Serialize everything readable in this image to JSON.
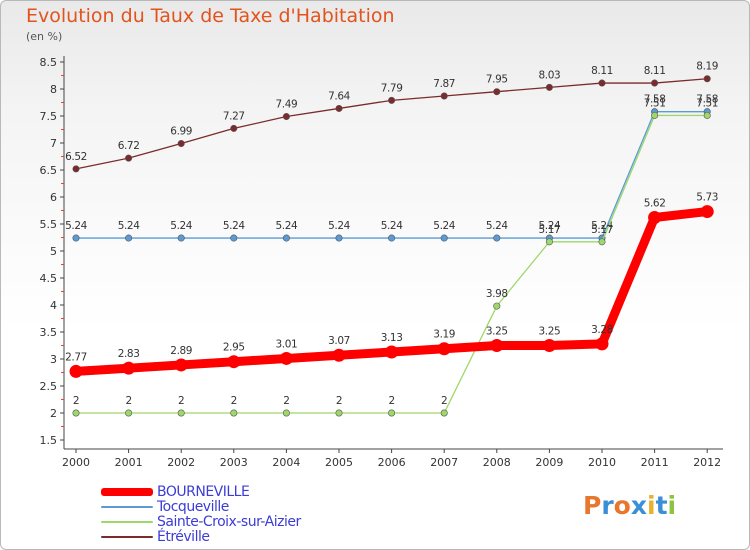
{
  "title": "Evolution du Taux de Taxe d'Habitation",
  "subtitle": "(en %)",
  "logo": {
    "letters": [
      "P",
      "r",
      "o",
      "x",
      "i",
      "t",
      "i"
    ],
    "colors": [
      "#e8762c",
      "#3a8fd6",
      "#e8762c",
      "#3a8fd6",
      "#e8b22c",
      "#3a8fd6",
      "#8cc43e"
    ]
  },
  "chart_data": {
    "type": "line",
    "x": [
      "2000",
      "2001",
      "2002",
      "2003",
      "2004",
      "2005",
      "2006",
      "2007",
      "2008",
      "2009",
      "2010",
      "2011",
      "2012"
    ],
    "ylim": [
      1.5,
      8.5
    ],
    "yticks": [
      "1.5",
      "2",
      "2.5",
      "3",
      "3.5",
      "4",
      "4.5",
      "5",
      "5.5",
      "6",
      "6.5",
      "7",
      "7.5",
      "8",
      "8.5"
    ],
    "grid": "off",
    "legend_position": "bottom",
    "series": [
      {
        "name": "BOURNEVILLE",
        "color": "#ff0000",
        "values": [
          2.77,
          2.83,
          2.89,
          2.95,
          3.01,
          3.07,
          3.13,
          3.19,
          3.25,
          3.25,
          3.28,
          5.62,
          5.73
        ],
        "labels": [
          "2.77",
          "2.83",
          "2.89",
          "2.95",
          "3.01",
          "3.07",
          "3.13",
          "3.19",
          "3.25",
          "3.25",
          "3.28",
          "5.62",
          "5.73"
        ]
      },
      {
        "name": "Tocqueville",
        "color": "#5b9bd5",
        "values": [
          5.24,
          5.24,
          5.24,
          5.24,
          5.24,
          5.24,
          5.24,
          5.24,
          5.24,
          5.24,
          5.24,
          7.58,
          7.58
        ],
        "labels": [
          "5.24",
          "5.24",
          "5.24",
          "5.24",
          "5.24",
          "5.24",
          "5.24",
          "5.24",
          "5.24",
          "5.24",
          "5.24",
          "7.58",
          "7.58"
        ]
      },
      {
        "name": "Sainte-Croix-sur-Aizier",
        "color": "#9ed86a",
        "values": [
          2,
          2,
          2,
          2,
          2,
          2,
          2,
          2,
          3.98,
          5.17,
          5.17,
          7.51,
          7.51
        ],
        "labels": [
          "2",
          "2",
          "2",
          "2",
          "2",
          "2",
          "2",
          "2",
          "3.98",
          "5.17",
          "5.17",
          "7.51",
          "7.51"
        ]
      },
      {
        "name": "Étréville",
        "color": "#7b2b2b",
        "values": [
          6.52,
          6.72,
          6.99,
          7.27,
          7.49,
          7.64,
          7.79,
          7.87,
          7.95,
          8.03,
          8.11,
          8.11,
          8.19
        ],
        "labels": [
          "6.52",
          "6.72",
          "6.99",
          "7.27",
          "7.49",
          "7.64",
          "7.79",
          "7.87",
          "7.95",
          "8.03",
          "8.11",
          "8.11",
          "8.19"
        ]
      }
    ]
  }
}
